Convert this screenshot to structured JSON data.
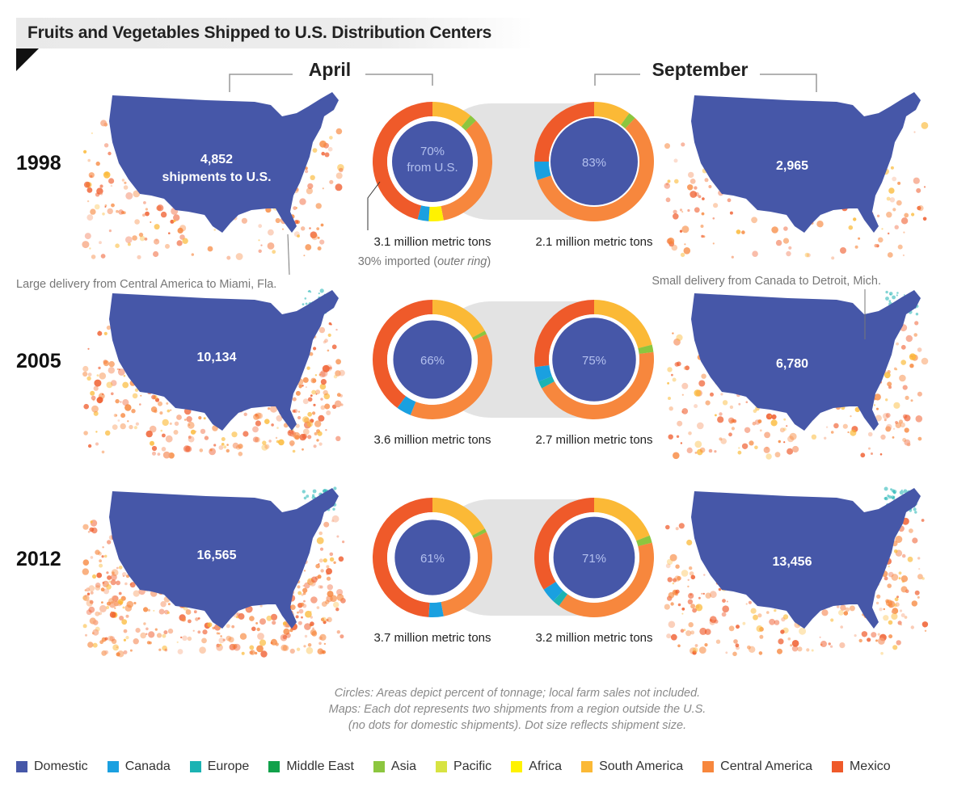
{
  "title": "Fruits and Vegetables Shipped to U.S. Distribution Centers",
  "colors": {
    "Domestic": "#4657a8",
    "Canada": "#1aa0e0",
    "Europe": "#1bb3b3",
    "Middle East": "#10a14a",
    "Asia": "#8cc63f",
    "Pacific": "#d7e342",
    "Africa": "#fff200",
    "South America": "#fbb936",
    "Central America": "#f7873d",
    "Mexico": "#ef5a2a"
  },
  "chart_data": {
    "type": "pie",
    "title": "Fruits and Vegetables Shipped to U.S. Distribution Centers",
    "months": [
      "April",
      "September"
    ],
    "legend": [
      "Domestic",
      "Canada",
      "Europe",
      "Middle East",
      "Asia",
      "Pacific",
      "Africa",
      "South America",
      "Central America",
      "Mexico"
    ],
    "years": [
      {
        "year": "1998",
        "april": {
          "shipments": "4,852",
          "shipments_suffix": "shipments to U.S.",
          "domestic_pct": 70,
          "center_label": "70%",
          "center_sub": "from U.S.",
          "tonnage": "3.1 million metric tons",
          "imported_note_prefix": "30% imported (",
          "imported_note_em": "outer ring",
          "imported_note_suffix": ")",
          "ring": [
            {
              "region": "South America",
              "share": 11
            },
            {
              "region": "Asia",
              "share": 2
            },
            {
              "region": "Central America",
              "share": 34
            },
            {
              "region": "Africa",
              "share": 4
            },
            {
              "region": "Canada",
              "share": 3
            },
            {
              "region": "Mexico",
              "share": 46
            }
          ]
        },
        "september": {
          "shipments": "2,965",
          "domestic_pct": 83,
          "center_label": "83%",
          "tonnage": "2.1 million metric tons",
          "ring": [
            {
              "region": "South America",
              "share": 10
            },
            {
              "region": "Asia",
              "share": 2
            },
            {
              "region": "Central America",
              "share": 58
            },
            {
              "region": "Canada",
              "share": 5
            },
            {
              "region": "Mexico",
              "share": 25
            }
          ]
        }
      },
      {
        "year": "2005",
        "april": {
          "shipments": "10,134",
          "domestic_pct": 66,
          "center_label": "66%",
          "tonnage": "3.6 million metric tons",
          "ring": [
            {
              "region": "South America",
              "share": 17
            },
            {
              "region": "Asia",
              "share": 1
            },
            {
              "region": "Central America",
              "share": 38
            },
            {
              "region": "Canada",
              "share": 4
            },
            {
              "region": "Mexico",
              "share": 40
            }
          ]
        },
        "september": {
          "shipments": "6,780",
          "domestic_pct": 75,
          "center_label": "75%",
          "tonnage": "2.7 million metric tons",
          "ring": [
            {
              "region": "South America",
              "share": 21
            },
            {
              "region": "Asia",
              "share": 2
            },
            {
              "region": "Central America",
              "share": 44
            },
            {
              "region": "Europe",
              "share": 2
            },
            {
              "region": "Canada",
              "share": 4
            },
            {
              "region": "Mexico",
              "share": 27
            }
          ]
        }
      },
      {
        "year": "2012",
        "april": {
          "shipments": "16,565",
          "domestic_pct": 61,
          "center_label": "61%",
          "tonnage": "3.7 million metric tons",
          "ring": [
            {
              "region": "South America",
              "share": 17
            },
            {
              "region": "Asia",
              "share": 1
            },
            {
              "region": "Central America",
              "share": 29
            },
            {
              "region": "Canada",
              "share": 4
            },
            {
              "region": "Mexico",
              "share": 49
            }
          ]
        },
        "september": {
          "shipments": "13,456",
          "domestic_pct": 71,
          "center_label": "71%",
          "tonnage": "3.2 million metric tons",
          "ring": [
            {
              "region": "South America",
              "share": 19
            },
            {
              "region": "Asia",
              "share": 2
            },
            {
              "region": "Central America",
              "share": 39
            },
            {
              "region": "Europe",
              "share": 2
            },
            {
              "region": "Canada",
              "share": 4
            },
            {
              "region": "Mexico",
              "share": 34
            }
          ]
        }
      }
    ],
    "annotations": {
      "miami": "Large delivery from Central America to Miami, Fla.",
      "detroit": "Small delivery from Canada to Detroit, Mich."
    }
  },
  "notes": [
    "Circles: Areas depict percent of tonnage; local farm sales not included.",
    "Maps: Each dot represents two shipments from a region outside the U.S.",
    "(no dots for domestic shipments). Dot size reflects shipment size."
  ]
}
